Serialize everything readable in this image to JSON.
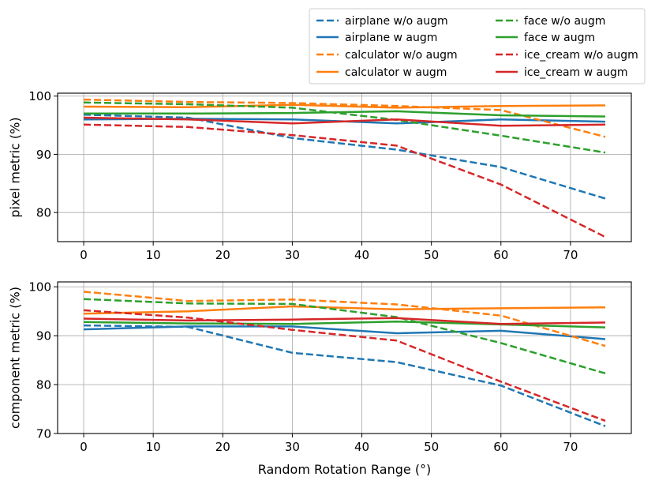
{
  "chart_data": [
    {
      "type": "line",
      "id": "pixel",
      "title": "",
      "xlabel": "",
      "ylabel": "pixel metric (%)",
      "xlim": [
        -3.75,
        78.75
      ],
      "ylim": [
        75,
        100.5
      ],
      "xticks": [
        0,
        10,
        20,
        30,
        40,
        50,
        60,
        70
      ],
      "yticks": [
        80,
        90,
        100
      ],
      "x": [
        0,
        15,
        30,
        45,
        60,
        75
      ],
      "grid": true,
      "series": [
        {
          "name": "airplane w/o augm",
          "color": "#1f77b4",
          "dash": true,
          "values": [
            96.8,
            96.3,
            92.8,
            90.8,
            87.8,
            82.4
          ]
        },
        {
          "name": "airplane w augm",
          "color": "#1f77b4",
          "dash": false,
          "values": [
            96.0,
            96.1,
            96.0,
            95.3,
            96.0,
            95.6
          ]
        },
        {
          "name": "calculator w/o augm",
          "color": "#ff7f0e",
          "dash": true,
          "values": [
            99.4,
            99.0,
            98.8,
            98.3,
            97.6,
            93.0
          ]
        },
        {
          "name": "calculator w augm",
          "color": "#ff7f0e",
          "dash": false,
          "values": [
            98.2,
            98.1,
            98.5,
            98.0,
            98.3,
            98.4
          ]
        },
        {
          "name": "face w/o augm",
          "color": "#2ca02c",
          "dash": true,
          "values": [
            98.9,
            98.6,
            98.0,
            95.9,
            93.2,
            90.3
          ]
        },
        {
          "name": "face w augm",
          "color": "#2ca02c",
          "dash": false,
          "values": [
            97.0,
            97.0,
            97.1,
            97.4,
            96.7,
            96.5
          ]
        },
        {
          "name": "ice_cream w/o augm",
          "color": "#d62728",
          "dash": true,
          "values": [
            95.1,
            94.7,
            93.3,
            91.5,
            84.8,
            75.8
          ]
        },
        {
          "name": "ice_cream w augm",
          "color": "#d62728",
          "dash": false,
          "values": [
            96.3,
            96.0,
            95.3,
            96.0,
            94.9,
            95.1
          ]
        }
      ]
    },
    {
      "type": "line",
      "id": "component",
      "title": "",
      "xlabel": "Random Rotation Range (°)",
      "ylabel": "component metric (%)",
      "xlim": [
        -3.75,
        78.75
      ],
      "ylim": [
        70,
        101
      ],
      "xticks": [
        0,
        10,
        20,
        30,
        40,
        50,
        60,
        70
      ],
      "yticks": [
        70,
        80,
        90,
        100
      ],
      "x": [
        0,
        15,
        30,
        45,
        60,
        75
      ],
      "grid": true,
      "series": [
        {
          "name": "airplane w/o augm",
          "color": "#1f77b4",
          "dash": true,
          "values": [
            92.1,
            91.8,
            86.5,
            84.6,
            79.8,
            71.5
          ]
        },
        {
          "name": "airplane w augm",
          "color": "#1f77b4",
          "dash": false,
          "values": [
            91.3,
            91.9,
            91.9,
            90.5,
            91.0,
            89.3
          ]
        },
        {
          "name": "calculator w/o augm",
          "color": "#ff7f0e",
          "dash": true,
          "values": [
            99.0,
            97.1,
            97.4,
            96.4,
            94.1,
            87.9
          ]
        },
        {
          "name": "calculator w augm",
          "color": "#ff7f0e",
          "dash": false,
          "values": [
            94.5,
            95.0,
            96.0,
            95.4,
            95.6,
            95.8
          ]
        },
        {
          "name": "face w/o augm",
          "color": "#2ca02c",
          "dash": true,
          "values": [
            97.5,
            96.6,
            96.5,
            93.8,
            88.5,
            82.3
          ]
        },
        {
          "name": "face w augm",
          "color": "#2ca02c",
          "dash": false,
          "values": [
            92.8,
            92.5,
            92.4,
            92.9,
            92.3,
            91.7
          ]
        },
        {
          "name": "ice_cream w/o augm",
          "color": "#d62728",
          "dash": true,
          "values": [
            95.2,
            93.7,
            91.2,
            89.0,
            80.6,
            72.6
          ]
        },
        {
          "name": "ice_cream w augm",
          "color": "#d62728",
          "dash": false,
          "values": [
            93.5,
            93.1,
            93.3,
            93.6,
            92.4,
            92.7
          ]
        }
      ]
    }
  ],
  "legend": {
    "location": "top-right",
    "columns": 2,
    "entries": [
      "airplane w/o augm",
      "airplane w augm",
      "calculator w/o augm",
      "calculator w augm",
      "face w/o augm",
      "face w augm",
      "ice_cream w/o augm",
      "ice_cream w augm"
    ]
  }
}
